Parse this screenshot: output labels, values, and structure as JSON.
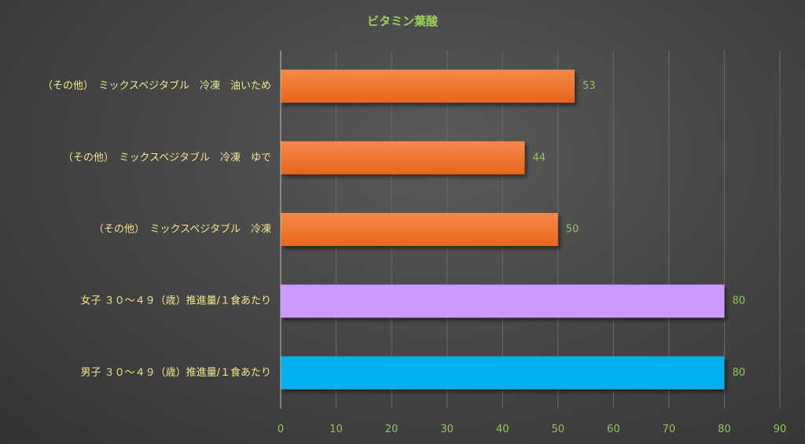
{
  "chart_data": {
    "type": "bar",
    "orientation": "horizontal",
    "title": "ビタミン葉酸",
    "categories": [
      "（その他）　ミックスベジタブル　冷凍　油いため",
      "（その他）　ミックスベジタブル　冷凍　ゆで",
      "（その他）　ミックスベジタブル　冷凍",
      "女子 ３０～４９（歳）推進量/１食あたり",
      "男子 ３０～４９（歳）推進量/１食あたり"
    ],
    "values": [
      53,
      44,
      50,
      80,
      80
    ],
    "bar_colors": [
      "#f07320",
      "#f07320",
      "#f07320",
      "#cc99ff",
      "#00b0f0"
    ],
    "xlim": [
      0,
      90
    ],
    "xticks": [
      0,
      10,
      20,
      30,
      40,
      50,
      60,
      70,
      80,
      90
    ],
    "xlabel": "",
    "ylabel": "",
    "grid": true,
    "legend": "none"
  },
  "colors": {
    "title": "#9bd15a",
    "category_labels": "#f0e68c",
    "tick_labels": "#8fc65a",
    "data_labels": "#8fc65a",
    "gridlines": "#6a6a6a",
    "axis": "#bfbfbf"
  }
}
